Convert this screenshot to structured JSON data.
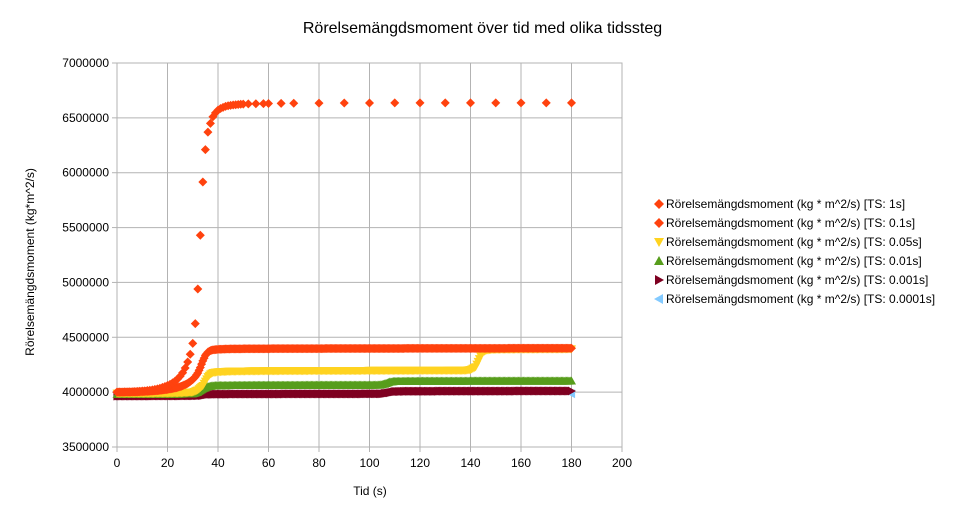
{
  "chart_data": {
    "type": "scatter",
    "title": "Rörelsemängdsmoment över tid med olika tidssteg",
    "xlabel": "Tid (s)",
    "ylabel": "Rörelsemängdsmoment (kg*m^2/s)",
    "xlim": [
      0,
      200
    ],
    "ylim": [
      3500000,
      7000000
    ],
    "x_ticks": [
      "0",
      "20",
      "40",
      "60",
      "80",
      "100",
      "120",
      "140",
      "160",
      "180",
      "200"
    ],
    "y_ticks": [
      "3500000",
      "4000000",
      "4500000",
      "5000000",
      "5500000",
      "6000000",
      "6500000",
      "7000000"
    ],
    "grid": true,
    "legend_position": "right",
    "series": [
      {
        "name": "Rörelsemängdsmoment (kg * m^2/s) [TS: 1s]",
        "color": "#ff420e",
        "marker": "diamond",
        "points": [
          [
            0,
            4000000
          ],
          [
            1,
            4000000
          ],
          [
            2,
            4001000
          ],
          [
            3,
            4001500
          ],
          [
            4,
            4002000
          ],
          [
            5,
            4003000
          ],
          [
            6,
            4004000
          ],
          [
            7,
            4005000
          ],
          [
            8,
            4006500
          ],
          [
            9,
            4008000
          ],
          [
            10,
            4010000
          ],
          [
            11,
            4012000
          ],
          [
            12,
            4014500
          ],
          [
            13,
            4017500
          ],
          [
            14,
            4021000
          ],
          [
            15,
            4025000
          ],
          [
            16,
            4030000
          ],
          [
            17,
            4036000
          ],
          [
            18,
            4043000
          ],
          [
            19,
            4051000
          ],
          [
            20,
            4060000
          ],
          [
            21,
            4071000
          ],
          [
            22,
            4084000
          ],
          [
            23,
            4100000
          ],
          [
            24,
            4120000
          ],
          [
            25,
            4145000
          ],
          [
            26,
            4177000
          ],
          [
            27,
            4220000
          ],
          [
            28,
            4275000
          ],
          [
            29,
            4345000
          ],
          [
            30,
            4445000
          ],
          [
            31,
            4625000
          ],
          [
            32,
            4940000
          ],
          [
            33,
            5430000
          ],
          [
            34,
            5915000
          ],
          [
            35,
            6210000
          ],
          [
            36,
            6370000
          ],
          [
            37,
            6450000
          ],
          [
            38,
            6510000
          ],
          [
            39,
            6545000
          ],
          [
            40,
            6570000
          ],
          [
            41,
            6585000
          ],
          [
            42,
            6595000
          ],
          [
            43,
            6605000
          ],
          [
            44,
            6610000
          ],
          [
            45,
            6614000
          ],
          [
            46,
            6617000
          ],
          [
            47,
            6620000
          ],
          [
            48,
            6622000
          ],
          [
            49,
            6624000
          ],
          [
            50,
            6625000
          ],
          [
            52,
            6627000
          ],
          [
            55,
            6629000
          ],
          [
            58,
            6630000
          ],
          [
            60,
            6631000
          ],
          [
            65,
            6632000
          ],
          [
            70,
            6633000
          ],
          [
            80,
            6634000
          ],
          [
            90,
            6635000
          ],
          [
            100,
            6635000
          ],
          [
            110,
            6636000
          ],
          [
            120,
            6636000
          ],
          [
            130,
            6636000
          ],
          [
            140,
            6637000
          ],
          [
            150,
            6637000
          ],
          [
            160,
            6637000
          ],
          [
            170,
            6637000
          ],
          [
            180,
            6637000
          ]
        ]
      },
      {
        "name": "Rörelsemängdsmoment (kg * m^2/s) [TS: 0.1s]",
        "color": "#ff420e",
        "marker": "diamond",
        "points": [
          [
            0,
            4000000
          ],
          [
            2,
            4000500
          ],
          [
            4,
            4001000
          ],
          [
            6,
            4002000
          ],
          [
            8,
            4003000
          ],
          [
            10,
            4005000
          ],
          [
            12,
            4007000
          ],
          [
            14,
            4010000
          ],
          [
            16,
            4014000
          ],
          [
            18,
            4019000
          ],
          [
            20,
            4025000
          ],
          [
            22,
            4033000
          ],
          [
            24,
            4043000
          ],
          [
            26,
            4058000
          ],
          [
            28,
            4080000
          ],
          [
            30,
            4115000
          ],
          [
            31,
            4140000
          ],
          [
            32,
            4175000
          ],
          [
            33,
            4225000
          ],
          [
            34,
            4285000
          ],
          [
            35,
            4335000
          ],
          [
            36,
            4365000
          ],
          [
            37,
            4378000
          ],
          [
            38,
            4385000
          ],
          [
            39,
            4388000
          ],
          [
            40,
            4390000
          ],
          [
            42,
            4392000
          ],
          [
            45,
            4394000
          ],
          [
            50,
            4395000
          ],
          [
            60,
            4396000
          ],
          [
            70,
            4397000
          ],
          [
            80,
            4397000
          ],
          [
            90,
            4398000
          ],
          [
            100,
            4398000
          ],
          [
            110,
            4398000
          ],
          [
            120,
            4399000
          ],
          [
            130,
            4399000
          ],
          [
            140,
            4399000
          ],
          [
            150,
            4399000
          ],
          [
            160,
            4400000
          ],
          [
            170,
            4400000
          ],
          [
            180,
            4400000
          ]
        ]
      },
      {
        "name": "Rörelsemängdsmoment (kg * m^2/s) [TS: 0.05s]",
        "color": "#ffd320",
        "marker": "triangle-down",
        "points": [
          [
            0,
            3990000
          ],
          [
            10,
            3990000
          ],
          [
            20,
            3991000
          ],
          [
            25,
            3993000
          ],
          [
            30,
            4000000
          ],
          [
            32,
            4020000
          ],
          [
            34,
            4060000
          ],
          [
            35,
            4100000
          ],
          [
            36,
            4140000
          ],
          [
            37,
            4165000
          ],
          [
            38,
            4178000
          ],
          [
            40,
            4185000
          ],
          [
            45,
            4190000
          ],
          [
            50,
            4192000
          ],
          [
            60,
            4194000
          ],
          [
            70,
            4195000
          ],
          [
            80,
            4196000
          ],
          [
            90,
            4196000
          ],
          [
            100,
            4197000
          ],
          [
            110,
            4197000
          ],
          [
            120,
            4198000
          ],
          [
            130,
            4198000
          ],
          [
            138,
            4199000
          ],
          [
            140,
            4205000
          ],
          [
            142,
            4230000
          ],
          [
            143,
            4280000
          ],
          [
            144,
            4330000
          ],
          [
            145,
            4365000
          ],
          [
            146,
            4380000
          ],
          [
            148,
            4388000
          ],
          [
            150,
            4390000
          ],
          [
            160,
            4392000
          ],
          [
            170,
            4393000
          ],
          [
            180,
            4394000
          ]
        ]
      },
      {
        "name": "Rörelsemängdsmoment (kg * m^2/s) [TS: 0.01s]",
        "color": "#579d1c",
        "marker": "triangle-up",
        "points": [
          [
            0,
            3980000
          ],
          [
            10,
            3980000
          ],
          [
            20,
            3981000
          ],
          [
            30,
            3985000
          ],
          [
            32,
            4000000
          ],
          [
            34,
            4030000
          ],
          [
            36,
            4050000
          ],
          [
            38,
            4058000
          ],
          [
            40,
            4060000
          ],
          [
            50,
            4062000
          ],
          [
            60,
            4063000
          ],
          [
            70,
            4063000
          ],
          [
            80,
            4064000
          ],
          [
            90,
            4064000
          ],
          [
            100,
            4064000
          ],
          [
            104,
            4065000
          ],
          [
            106,
            4075000
          ],
          [
            108,
            4092000
          ],
          [
            110,
            4098000
          ],
          [
            120,
            4100000
          ],
          [
            130,
            4100000
          ],
          [
            140,
            4101000
          ],
          [
            150,
            4101000
          ],
          [
            160,
            4101000
          ],
          [
            170,
            4101000
          ],
          [
            180,
            4102000
          ]
        ]
      },
      {
        "name": "Rörelsemängdsmoment (kg * m^2/s) [TS: 0.001s]",
        "color": "#7e0021",
        "marker": "triangle-right",
        "points": [
          [
            0,
            3965000
          ],
          [
            10,
            3965000
          ],
          [
            20,
            3966000
          ],
          [
            30,
            3967000
          ],
          [
            34,
            3970000
          ],
          [
            35,
            3975000
          ],
          [
            36,
            3980000
          ],
          [
            40,
            3982000
          ],
          [
            50,
            3983000
          ],
          [
            60,
            3983000
          ],
          [
            70,
            3984000
          ],
          [
            80,
            3984000
          ],
          [
            90,
            3984000
          ],
          [
            100,
            3985000
          ],
          [
            105,
            3985000
          ],
          [
            108,
            3995000
          ],
          [
            110,
            4005000
          ],
          [
            115,
            4008000
          ],
          [
            120,
            4008000
          ],
          [
            130,
            4009000
          ],
          [
            140,
            4009000
          ],
          [
            150,
            4009000
          ],
          [
            160,
            4010000
          ],
          [
            170,
            4010000
          ],
          [
            180,
            4010000
          ]
        ]
      },
      {
        "name": "Rörelsemängdsmoment (kg * m^2/s) [TS: 0.0001s]",
        "color": "#83caff",
        "marker": "triangle-left",
        "points": [
          [
            180,
            3985000
          ]
        ]
      }
    ]
  }
}
